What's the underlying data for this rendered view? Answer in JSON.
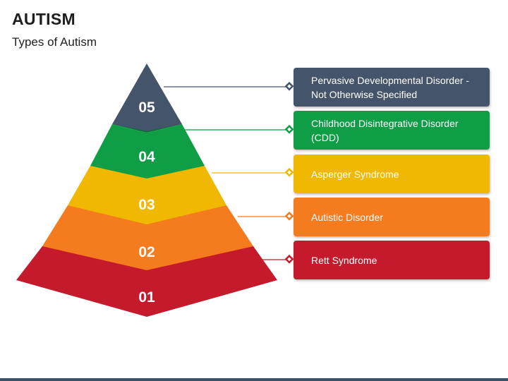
{
  "header": {
    "title": "AUTISM",
    "subtitle": "Types of Autism"
  },
  "levels": [
    {
      "number": "05",
      "label": "Pervasive Developmental Disorder - Not Otherwise Specified",
      "color": "#44546a",
      "shade": "#2f3b4a"
    },
    {
      "number": "04",
      "label": "Childhood Disintegrative Disorder (CDD)",
      "color": "#0f9d45",
      "shade": "#0a6e30"
    },
    {
      "number": "03",
      "label": "Asperger Syndrome",
      "color": "#f0b800",
      "shade": "#a88100"
    },
    {
      "number": "02",
      "label": "Autistic Disorder",
      "color": "#f57b1f",
      "shade": "#ab5615"
    },
    {
      "number": "01",
      "label": "Rett Syndrome",
      "color": "#c41a2c",
      "shade": "#891220"
    }
  ]
}
